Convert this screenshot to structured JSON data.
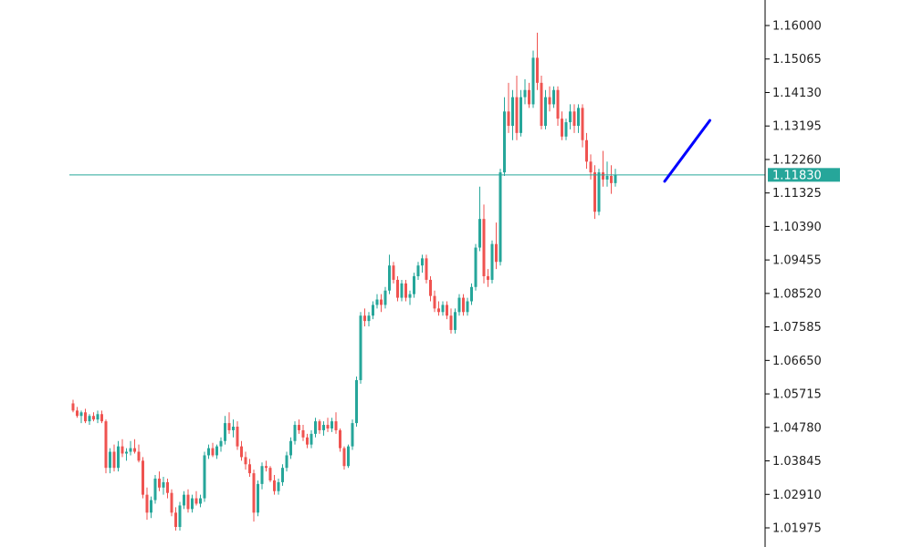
{
  "chart_data": {
    "type": "candlestick",
    "title": "",
    "xlabel": "",
    "ylabel": "",
    "ylim": [
      1.015,
      1.165
    ],
    "y_ticks": [
      "1.16000",
      "1.15065",
      "1.14130",
      "1.13195",
      "1.12260",
      "1.11325",
      "1.10390",
      "1.09455",
      "1.08520",
      "1.07585",
      "1.06650",
      "1.05715",
      "1.04780",
      "1.03845",
      "1.02910",
      "1.01975"
    ],
    "current_price": "1.11830",
    "grid": false,
    "colors": {
      "up": "#26a69a",
      "down": "#ef5350",
      "price_line": "#26a69a",
      "price_tag_bg": "#26a69a",
      "trend_line": "#0000ff",
      "axis": "#000000"
    },
    "trend_line": {
      "from": [
        144,
        1.1165
      ],
      "to": [
        155,
        1.1335
      ]
    },
    "ohlc": [
      [
        1.0545,
        1.0555,
        1.052,
        1.0525
      ],
      [
        1.0525,
        1.0535,
        1.0505,
        1.051
      ],
      [
        1.051,
        1.0525,
        1.049,
        1.052
      ],
      [
        1.052,
        1.053,
        1.049,
        1.0495
      ],
      [
        1.0495,
        1.0515,
        1.0485,
        1.051
      ],
      [
        1.051,
        1.052,
        1.0495,
        1.05
      ],
      [
        1.05,
        1.0525,
        1.049,
        1.0515
      ],
      [
        1.0515,
        1.0525,
        1.049,
        1.0495
      ],
      [
        1.0495,
        1.05,
        1.035,
        1.0365
      ],
      [
        1.0365,
        1.042,
        1.035,
        1.041
      ],
      [
        1.041,
        1.043,
        1.0355,
        1.0365
      ],
      [
        1.0365,
        1.044,
        1.0355,
        1.0425
      ],
      [
        1.0425,
        1.0445,
        1.0395,
        1.0405
      ],
      [
        1.0405,
        1.042,
        1.0385,
        1.041
      ],
      [
        1.041,
        1.044,
        1.04,
        1.042
      ],
      [
        1.042,
        1.0445,
        1.0405,
        1.041
      ],
      [
        1.041,
        1.043,
        1.038,
        1.0385
      ],
      [
        1.0385,
        1.0395,
        1.028,
        1.029
      ],
      [
        1.029,
        1.031,
        1.022,
        1.024
      ],
      [
        1.024,
        1.0285,
        1.0225,
        1.0275
      ],
      [
        1.0275,
        1.0345,
        1.0265,
        1.0335
      ],
      [
        1.0335,
        1.0355,
        1.03,
        1.031
      ],
      [
        1.031,
        1.034,
        1.029,
        1.0325
      ],
      [
        1.0325,
        1.0335,
        1.028,
        1.0295
      ],
      [
        1.0295,
        1.0305,
        1.023,
        1.024
      ],
      [
        1.024,
        1.0255,
        1.019,
        1.02
      ],
      [
        1.02,
        1.027,
        1.019,
        1.026
      ],
      [
        1.026,
        1.03,
        1.025,
        1.029
      ],
      [
        1.029,
        1.0305,
        1.024,
        1.025
      ],
      [
        1.025,
        1.029,
        1.024,
        1.028
      ],
      [
        1.028,
        1.03,
        1.026,
        1.0265
      ],
      [
        1.0265,
        1.029,
        1.0255,
        1.028
      ],
      [
        1.028,
        1.041,
        1.027,
        1.04
      ],
      [
        1.04,
        1.043,
        1.039,
        1.042
      ],
      [
        1.042,
        1.0435,
        1.0395,
        1.04
      ],
      [
        1.04,
        1.043,
        1.039,
        1.0425
      ],
      [
        1.0425,
        1.045,
        1.041,
        1.044
      ],
      [
        1.044,
        1.051,
        1.043,
        1.049
      ],
      [
        1.049,
        1.052,
        1.046,
        1.047
      ],
      [
        1.047,
        1.05,
        1.045,
        1.048
      ],
      [
        1.048,
        1.0495,
        1.0415,
        1.0425
      ],
      [
        1.0425,
        1.044,
        1.0385,
        1.0395
      ],
      [
        1.0395,
        1.041,
        1.036,
        1.0375
      ],
      [
        1.0375,
        1.039,
        1.034,
        1.035
      ],
      [
        1.035,
        1.036,
        1.0215,
        1.024
      ],
      [
        1.024,
        1.033,
        1.023,
        1.032
      ],
      [
        1.032,
        1.038,
        1.0305,
        1.037
      ],
      [
        1.037,
        1.0385,
        1.0355,
        1.0365
      ],
      [
        1.0365,
        1.037,
        1.0325,
        1.033
      ],
      [
        1.033,
        1.0345,
        1.029,
        1.03
      ],
      [
        1.03,
        1.0335,
        1.029,
        1.0325
      ],
      [
        1.0325,
        1.0375,
        1.0315,
        1.0365
      ],
      [
        1.0365,
        1.041,
        1.0355,
        1.04
      ],
      [
        1.04,
        1.045,
        1.039,
        1.044
      ],
      [
        1.044,
        1.0495,
        1.043,
        1.0485
      ],
      [
        1.0485,
        1.05,
        1.046,
        1.047
      ],
      [
        1.047,
        1.0485,
        1.044,
        1.045
      ],
      [
        1.045,
        1.046,
        1.042,
        1.043
      ],
      [
        1.043,
        1.047,
        1.042,
        1.046
      ],
      [
        1.046,
        1.0505,
        1.045,
        1.0495
      ],
      [
        1.0495,
        1.05,
        1.046,
        1.047
      ],
      [
        1.047,
        1.0495,
        1.0455,
        1.0485
      ],
      [
        1.0485,
        1.0505,
        1.0465,
        1.0475
      ],
      [
        1.0475,
        1.0505,
        1.0465,
        1.0495
      ],
      [
        1.0495,
        1.052,
        1.046,
        1.047
      ],
      [
        1.047,
        1.0475,
        1.041,
        1.042
      ],
      [
        1.042,
        1.0425,
        1.036,
        1.037
      ],
      [
        1.037,
        1.043,
        1.0365,
        1.0425
      ],
      [
        1.0425,
        1.05,
        1.0415,
        1.049
      ],
      [
        1.049,
        1.062,
        1.048,
        1.061
      ],
      [
        1.061,
        1.08,
        1.06,
        1.079
      ],
      [
        1.079,
        1.081,
        1.076,
        1.0775
      ],
      [
        1.0775,
        1.08,
        1.076,
        1.079
      ],
      [
        1.079,
        1.083,
        1.078,
        1.082
      ],
      [
        1.082,
        1.085,
        1.081,
        1.0835
      ],
      [
        1.0835,
        1.085,
        1.08,
        1.082
      ],
      [
        1.082,
        1.087,
        1.081,
        1.086
      ],
      [
        1.086,
        1.096,
        1.085,
        1.093
      ],
      [
        1.093,
        1.094,
        1.088,
        1.089
      ],
      [
        1.089,
        1.09,
        1.083,
        1.084
      ],
      [
        1.084,
        1.089,
        1.083,
        1.088
      ],
      [
        1.088,
        1.089,
        1.083,
        1.084
      ],
      [
        1.084,
        1.086,
        1.082,
        1.085
      ],
      [
        1.085,
        1.091,
        1.084,
        1.09
      ],
      [
        1.09,
        1.094,
        1.089,
        1.093
      ],
      [
        1.093,
        1.096,
        1.091,
        1.095
      ],
      [
        1.095,
        1.096,
        1.088,
        1.089
      ],
      [
        1.089,
        1.09,
        1.083,
        1.0845
      ],
      [
        1.0845,
        1.086,
        1.08,
        1.081
      ],
      [
        1.081,
        1.083,
        1.079,
        1.08
      ],
      [
        1.08,
        1.083,
        1.079,
        1.082
      ],
      [
        1.082,
        1.083,
        1.078,
        1.079
      ],
      [
        1.079,
        1.081,
        1.074,
        1.075
      ],
      [
        1.075,
        1.081,
        1.074,
        1.08
      ],
      [
        1.08,
        1.085,
        1.079,
        1.084
      ],
      [
        1.084,
        1.085,
        1.079,
        1.08
      ],
      [
        1.08,
        1.084,
        1.079,
        1.083
      ],
      [
        1.083,
        1.088,
        1.082,
        1.087
      ],
      [
        1.087,
        1.099,
        1.086,
        1.098
      ],
      [
        1.098,
        1.115,
        1.097,
        1.106
      ],
      [
        1.106,
        1.11,
        1.088,
        1.09
      ],
      [
        1.09,
        1.092,
        1.087,
        1.089
      ],
      [
        1.089,
        1.1,
        1.088,
        1.099
      ],
      [
        1.099,
        1.105,
        1.092,
        1.094
      ],
      [
        1.094,
        1.12,
        1.093,
        1.119
      ],
      [
        1.119,
        1.14,
        1.118,
        1.136
      ],
      [
        1.136,
        1.144,
        1.13,
        1.132
      ],
      [
        1.132,
        1.142,
        1.128,
        1.14
      ],
      [
        1.14,
        1.146,
        1.128,
        1.13
      ],
      [
        1.13,
        1.142,
        1.129,
        1.14
      ],
      [
        1.14,
        1.145,
        1.138,
        1.142
      ],
      [
        1.142,
        1.144,
        1.137,
        1.138
      ],
      [
        1.138,
        1.153,
        1.137,
        1.151
      ],
      [
        1.151,
        1.158,
        1.142,
        1.144
      ],
      [
        1.144,
        1.146,
        1.131,
        1.132
      ],
      [
        1.132,
        1.142,
        1.131,
        1.14
      ],
      [
        1.14,
        1.143,
        1.136,
        1.138
      ],
      [
        1.138,
        1.143,
        1.137,
        1.142
      ],
      [
        1.142,
        1.143,
        1.132,
        1.134
      ],
      [
        1.134,
        1.136,
        1.128,
        1.129
      ],
      [
        1.129,
        1.134,
        1.128,
        1.133
      ],
      [
        1.133,
        1.138,
        1.131,
        1.136
      ],
      [
        1.136,
        1.138,
        1.13,
        1.132
      ],
      [
        1.132,
        1.138,
        1.13,
        1.137
      ],
      [
        1.137,
        1.138,
        1.126,
        1.128
      ],
      [
        1.128,
        1.13,
        1.12,
        1.122
      ],
      [
        1.122,
        1.124,
        1.117,
        1.119
      ],
      [
        1.119,
        1.121,
        1.106,
        1.108
      ],
      [
        1.108,
        1.12,
        1.107,
        1.119
      ],
      [
        1.119,
        1.125,
        1.115,
        1.117
      ],
      [
        1.117,
        1.122,
        1.115,
        1.118
      ],
      [
        1.118,
        1.121,
        1.113,
        1.116
      ],
      [
        1.116,
        1.12,
        1.115,
        1.1183
      ]
    ]
  }
}
